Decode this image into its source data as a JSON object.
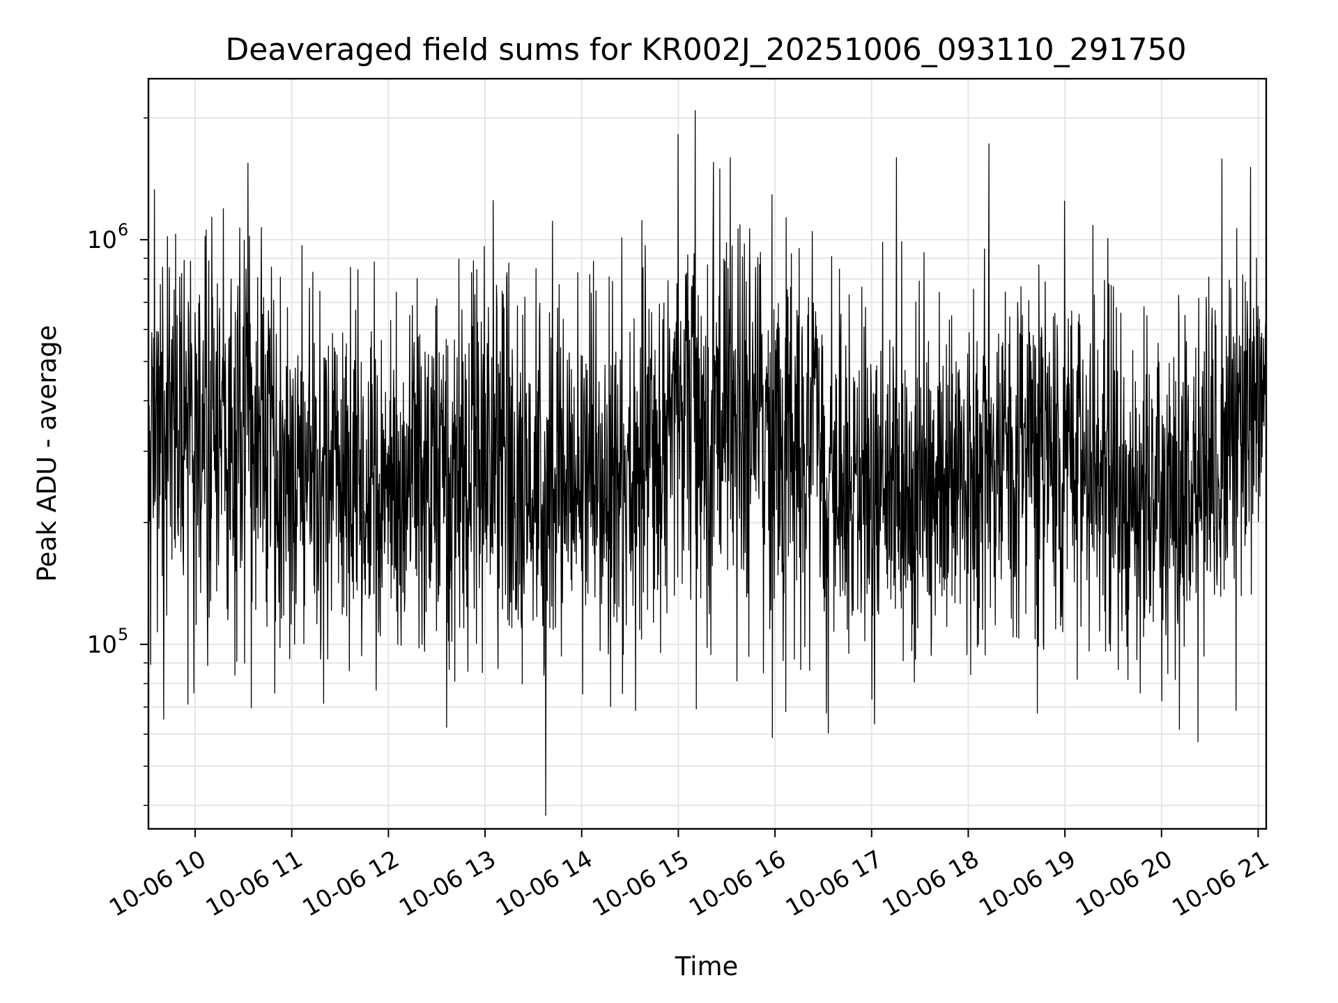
{
  "chart_data": {
    "type": "line",
    "title": "Deaveraged field sums for KR002J_20251006_093110_291750",
    "xlabel": "Time",
    "ylabel": "Peak ADU - average",
    "yscale": "log",
    "ylim": [
      35000,
      2500000
    ],
    "xlim": [
      "2025-10-06 09:31",
      "2025-10-06 21:05"
    ],
    "grid": true,
    "legend": "none",
    "x_tick_labels": [
      "10-06 10",
      "10-06 11",
      "10-06 12",
      "10-06 13",
      "10-06 14",
      "10-06 15",
      "10-06 16",
      "10-06 17",
      "10-06 18",
      "10-06 19",
      "10-06 20",
      "10-06 21"
    ],
    "y_tick_labels": [
      {
        "value": 100000,
        "base": "10",
        "exp": "5"
      },
      {
        "value": 1000000,
        "base": "10",
        "exp": "6"
      }
    ],
    "series": [
      {
        "color": "#000000",
        "x": [
          "2025-10-06 09:31",
          "2025-10-06 10:00",
          "2025-10-06 10:30",
          "2025-10-06 11:00",
          "2025-10-06 11:30",
          "2025-10-06 12:00",
          "2025-10-06 12:30",
          "2025-10-06 13:00",
          "2025-10-06 13:30",
          "2025-10-06 14:00",
          "2025-10-06 14:30",
          "2025-10-06 15:00",
          "2025-10-06 15:30",
          "2025-10-06 16:00",
          "2025-10-06 16:30",
          "2025-10-06 17:00",
          "2025-10-06 17:30",
          "2025-10-06 18:00",
          "2025-10-06 18:30",
          "2025-10-06 19:00",
          "2025-10-06 19:30",
          "2025-10-06 20:00",
          "2025-10-06 20:30",
          "2025-10-06 21:05"
        ],
        "y": [
          380000,
          330000,
          420000,
          250000,
          230000,
          220000,
          260000,
          300000,
          230000,
          250000,
          260000,
          400000,
          380000,
          300000,
          280000,
          230000,
          240000,
          260000,
          300000,
          340000,
          220000,
          200000,
          260000,
          420000
        ],
        "envelope_low": [
          90000,
          80000,
          90000,
          80000,
          85000,
          90000,
          80000,
          75000,
          70000,
          80000,
          85000,
          90000,
          90000,
          90000,
          80000,
          65000,
          75000,
          85000,
          90000,
          85000,
          85000,
          75000,
          85000,
          140000
        ],
        "envelope_high": [
          1200000,
          1000000,
          1300000,
          800000,
          800000,
          800000,
          900000,
          1100000,
          800000,
          900000,
          850000,
          1250000,
          1200000,
          1000000,
          900000,
          800000,
          850000,
          900000,
          900000,
          1100000,
          700000,
          650000,
          900000,
          1150000
        ]
      }
    ]
  }
}
